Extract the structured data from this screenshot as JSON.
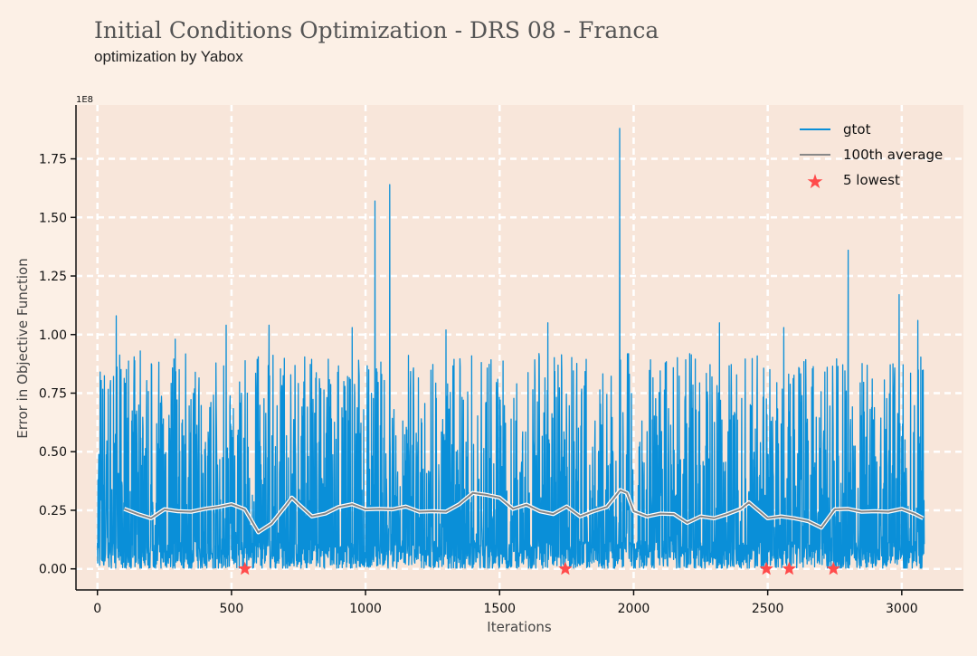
{
  "header": {
    "title": "Initial Conditions Optimization - DRS 08 - Franca",
    "subtitle": "optimization by Yabox"
  },
  "chart_data": {
    "type": "line",
    "xlabel": "Iterations",
    "ylabel": "Error in Objective Function",
    "y_exponent_label": "1E8",
    "xlim": [
      -80,
      3230
    ],
    "ylim": [
      -0.09,
      1.98
    ],
    "x_ticks": [
      0,
      500,
      1000,
      1500,
      2000,
      2500,
      3000
    ],
    "x_tick_labels": [
      "0",
      "500",
      "1000",
      "1500",
      "2000",
      "2500",
      "3000"
    ],
    "y_ticks": [
      0,
      0.25,
      0.5,
      0.75,
      1.0,
      1.25,
      1.5,
      1.75
    ],
    "y_tick_labels": [
      "0.00",
      "0.25",
      "0.50",
      "0.75",
      "1.00",
      "1.25",
      "1.50",
      "1.75"
    ],
    "grid": true,
    "legend_position": "top-right",
    "series": [
      {
        "name": "gtot",
        "color": "#0a8fd8",
        "n_points": 3085,
        "description": "highly oscillating trace of error per iteration, values mostly between 0.0 and 1.0 (x1E8)",
        "peaks": [
          {
            "x": 10,
            "y": 0.84
          },
          {
            "x": 70,
            "y": 1.08
          },
          {
            "x": 160,
            "y": 0.93
          },
          {
            "x": 290,
            "y": 0.98
          },
          {
            "x": 480,
            "y": 1.04
          },
          {
            "x": 640,
            "y": 1.04
          },
          {
            "x": 950,
            "y": 1.03
          },
          {
            "x": 1035,
            "y": 1.57
          },
          {
            "x": 1090,
            "y": 1.64
          },
          {
            "x": 1300,
            "y": 1.02
          },
          {
            "x": 1680,
            "y": 1.05
          },
          {
            "x": 1948,
            "y": 1.88
          },
          {
            "x": 2320,
            "y": 1.05
          },
          {
            "x": 2560,
            "y": 1.03
          },
          {
            "x": 2800,
            "y": 1.36
          },
          {
            "x": 2990,
            "y": 1.17
          },
          {
            "x": 3060,
            "y": 1.06
          }
        ]
      },
      {
        "name": "100th average",
        "color": "#888888",
        "points": [
          [
            100,
            0.26
          ],
          [
            150,
            0.23
          ],
          [
            200,
            0.22
          ],
          [
            250,
            0.25
          ],
          [
            300,
            0.25
          ],
          [
            350,
            0.24
          ],
          [
            400,
            0.26
          ],
          [
            450,
            0.26
          ],
          [
            500,
            0.28
          ],
          [
            550,
            0.25
          ],
          [
            600,
            0.16
          ],
          [
            650,
            0.19
          ],
          [
            700,
            0.27
          ],
          [
            725,
            0.3
          ],
          [
            750,
            0.28
          ],
          [
            800,
            0.22
          ],
          [
            850,
            0.24
          ],
          [
            900,
            0.26
          ],
          [
            950,
            0.28
          ],
          [
            1000,
            0.25
          ],
          [
            1050,
            0.26
          ],
          [
            1100,
            0.25
          ],
          [
            1150,
            0.27
          ],
          [
            1200,
            0.24
          ],
          [
            1250,
            0.25
          ],
          [
            1300,
            0.24
          ],
          [
            1350,
            0.28
          ],
          [
            1400,
            0.32
          ],
          [
            1450,
            0.32
          ],
          [
            1500,
            0.3
          ],
          [
            1550,
            0.26
          ],
          [
            1600,
            0.27
          ],
          [
            1650,
            0.25
          ],
          [
            1700,
            0.23
          ],
          [
            1750,
            0.27
          ],
          [
            1800,
            0.22
          ],
          [
            1850,
            0.25
          ],
          [
            1900,
            0.26
          ],
          [
            1950,
            0.34
          ],
          [
            1975,
            0.32
          ],
          [
            2000,
            0.25
          ],
          [
            2050,
            0.22
          ],
          [
            2100,
            0.24
          ],
          [
            2150,
            0.23
          ],
          [
            2200,
            0.2
          ],
          [
            2250,
            0.22
          ],
          [
            2300,
            0.22
          ],
          [
            2350,
            0.23
          ],
          [
            2400,
            0.26
          ],
          [
            2430,
            0.28
          ],
          [
            2500,
            0.22
          ],
          [
            2550,
            0.22
          ],
          [
            2600,
            0.22
          ],
          [
            2650,
            0.2
          ],
          [
            2700,
            0.18
          ],
          [
            2750,
            0.25
          ],
          [
            2800,
            0.26
          ],
          [
            2850,
            0.24
          ],
          [
            2900,
            0.25
          ],
          [
            2950,
            0.24
          ],
          [
            3000,
            0.26
          ],
          [
            3050,
            0.23
          ],
          [
            3080,
            0.22
          ]
        ]
      },
      {
        "name": "5 lowest",
        "color": "#ff4b4b",
        "marker": "star",
        "points": [
          [
            550,
            0.0
          ],
          [
            1745,
            0.0
          ],
          [
            2495,
            0.0
          ],
          [
            2580,
            0.0
          ],
          [
            2745,
            0.0
          ]
        ]
      }
    ]
  }
}
